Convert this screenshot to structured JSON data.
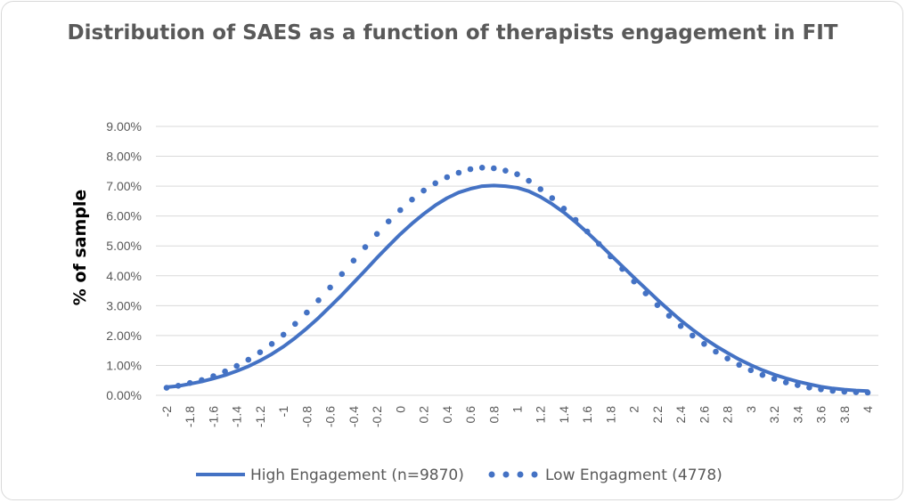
{
  "chart_data": {
    "type": "line",
    "title": "Distribution of SAES as a function of therapists engagement in FIT",
    "xlabel": "",
    "ylabel": "% of sample",
    "ylim": [
      0,
      0.09
    ],
    "yticks": [
      "0.00%",
      "1.00%",
      "2.00%",
      "3.00%",
      "4.00%",
      "5.00%",
      "6.00%",
      "7.00%",
      "8.00%",
      "9.00%"
    ],
    "x": [
      -2,
      -1.9,
      -1.8,
      -1.7,
      -1.6,
      -1.5,
      -1.4,
      -1.3,
      -1.2,
      -1.1,
      -1,
      -0.9,
      -0.8,
      -0.7,
      -0.6,
      -0.5,
      -0.4,
      -0.3,
      -0.2,
      -0.1,
      0,
      0.1,
      0.2,
      0.3,
      0.4,
      0.5,
      0.6,
      0.7,
      0.8,
      0.9,
      1,
      1.1,
      1.2,
      1.3,
      1.4,
      1.5,
      1.6,
      1.7,
      1.8,
      1.9,
      2,
      2.1,
      2.2,
      2.3,
      2.4,
      2.5,
      2.6,
      2.7,
      2.8,
      2.9,
      3,
      3.1,
      3.2,
      3.3,
      3.4,
      3.5,
      3.6,
      3.7,
      3.8,
      3.9,
      4
    ],
    "xticklabels": [
      "-2",
      "-1.8",
      "-1.6",
      "-1.4",
      "-1.2",
      "-1",
      "-0.8",
      "-0.6",
      "-0.4",
      "-0.2",
      "0",
      "0.2",
      "0.4",
      "0.6",
      "0.8",
      "1",
      "1.2",
      "1.4",
      "1.6",
      "1.8",
      "2",
      "2.2",
      "2.4",
      "2.6",
      "2.8",
      "3",
      "3.2",
      "3.4",
      "3.6",
      "3.8",
      "4"
    ],
    "grid": true,
    "legend_position": "bottom",
    "series": [
      {
        "name": "High Engagement (n=9870)",
        "style": "solid",
        "color": "#4472c4",
        "values": [
          0.0027,
          0.0031,
          0.0038,
          0.0046,
          0.0056,
          0.0067,
          0.0081,
          0.0097,
          0.0116,
          0.0138,
          0.0163,
          0.0192,
          0.0224,
          0.0259,
          0.0297,
          0.0336,
          0.0377,
          0.0418,
          0.046,
          0.05,
          0.0539,
          0.0575,
          0.0607,
          0.0636,
          0.066,
          0.0679,
          0.0691,
          0.07,
          0.0702,
          0.07,
          0.0695,
          0.0683,
          0.0664,
          0.064,
          0.0612,
          0.058,
          0.0545,
          0.0508,
          0.047,
          0.0432,
          0.0394,
          0.0357,
          0.032,
          0.0285,
          0.0251,
          0.022,
          0.0191,
          0.0165,
          0.0142,
          0.012,
          0.0101,
          0.0084,
          0.0069,
          0.0057,
          0.0046,
          0.0037,
          0.0029,
          0.0023,
          0.0019,
          0.0016,
          0.0014
        ]
      },
      {
        "name": "Low Engagment (4778)",
        "style": "dotted",
        "color": "#4472c4",
        "values": [
          0.0025,
          0.0032,
          0.0041,
          0.0051,
          0.0064,
          0.008,
          0.0098,
          0.0119,
          0.0144,
          0.0172,
          0.0203,
          0.0239,
          0.0277,
          0.0318,
          0.0361,
          0.0406,
          0.0451,
          0.0496,
          0.054,
          0.0582,
          0.062,
          0.0655,
          0.0685,
          0.071,
          0.073,
          0.0745,
          0.0757,
          0.0762,
          0.076,
          0.0752,
          0.074,
          0.0718,
          0.069,
          0.066,
          0.0625,
          0.0587,
          0.0548,
          0.0507,
          0.0465,
          0.0423,
          0.0381,
          0.0341,
          0.0302,
          0.0266,
          0.0232,
          0.02,
          0.0172,
          0.0146,
          0.0123,
          0.0102,
          0.0084,
          0.0068,
          0.0055,
          0.0043,
          0.0034,
          0.0026,
          0.002,
          0.0015,
          0.0012,
          0.001,
          0.0009
        ]
      }
    ]
  }
}
